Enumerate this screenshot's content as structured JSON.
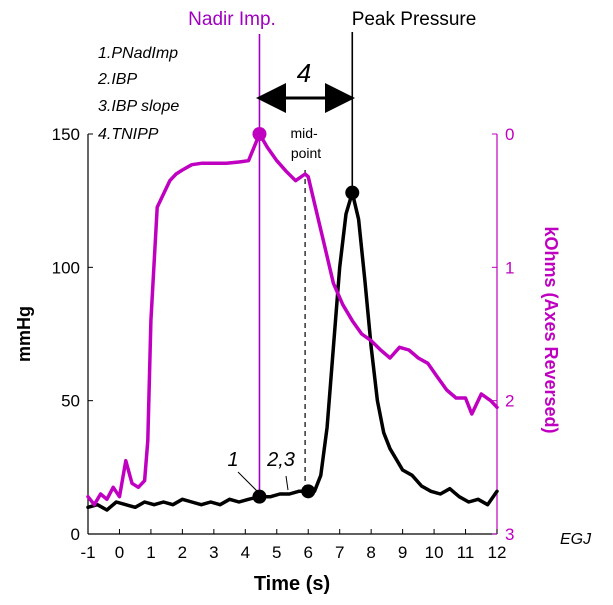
{
  "chart_data": {
    "type": "line",
    "x_axis": {
      "label": "Time (s)",
      "range": [
        -1,
        12
      ],
      "ticks": [
        -1,
        0,
        1,
        2,
        3,
        4,
        5,
        6,
        7,
        8,
        9,
        10,
        11,
        12
      ],
      "tick_labels": [
        "-1",
        "0",
        "1",
        "2",
        "3",
        "4",
        "5",
        "6",
        "7",
        "8",
        "9",
        "10",
        "11",
        "12"
      ]
    },
    "y_left": {
      "label": "mmHg",
      "range": [
        0,
        150
      ],
      "ticks": [
        0,
        50,
        100,
        150
      ],
      "tick_labels": [
        "0",
        "50",
        "100",
        "150"
      ]
    },
    "y_right": {
      "label": "kOhms (Axes Reversed)",
      "range": [
        0,
        3
      ],
      "reversed": true,
      "ticks": [
        0,
        1,
        2,
        3
      ],
      "tick_labels": [
        "0",
        "1",
        "2",
        "3"
      ],
      "color": "#c000c0"
    },
    "series": [
      {
        "key": "pressure",
        "axis": "left",
        "color": "#000000",
        "x": [
          -1,
          -0.7,
          -0.4,
          -0.1,
          0.2,
          0.5,
          0.8,
          1.1,
          1.4,
          1.7,
          2,
          2.3,
          2.6,
          2.9,
          3.2,
          3.5,
          3.8,
          4.1,
          4.45,
          4.8,
          5.1,
          5.4,
          5.7,
          6,
          6.2,
          6.4,
          6.6,
          6.8,
          7,
          7.2,
          7.4,
          7.6,
          7.8,
          8,
          8.2,
          8.4,
          8.6,
          8.8,
          9,
          9.3,
          9.6,
          9.9,
          10.2,
          10.5,
          10.8,
          11.1,
          11.4,
          11.7,
          12
        ],
        "y": [
          10,
          11,
          9,
          12,
          11,
          10,
          12,
          11,
          12,
          11,
          13,
          12,
          11,
          12,
          11,
          13,
          12,
          13,
          14,
          14,
          15,
          15,
          16,
          16,
          16,
          22,
          40,
          70,
          100,
          120,
          128,
          118,
          95,
          70,
          50,
          38,
          32,
          28,
          24,
          22,
          18,
          16,
          15,
          17,
          14,
          12,
          13,
          11,
          16
        ]
      },
      {
        "key": "impedance",
        "axis": "right",
        "color": "#c000c0",
        "x": [
          -1,
          -0.8,
          -0.6,
          -0.4,
          -0.2,
          0,
          0.2,
          0.4,
          0.6,
          0.8,
          0.9,
          1,
          1.2,
          1.4,
          1.6,
          1.8,
          2,
          2.3,
          2.6,
          3,
          3.4,
          3.8,
          4.1,
          4.45,
          4.7,
          5,
          5.3,
          5.6,
          5.9,
          6,
          6.2,
          6.5,
          6.8,
          7.1,
          7.4,
          7.7,
          8,
          8.3,
          8.6,
          8.9,
          9.2,
          9.5,
          9.8,
          10.1,
          10.4,
          10.7,
          11,
          11.2,
          11.5,
          11.8,
          12
        ],
        "y": [
          2.72,
          2.78,
          2.7,
          2.74,
          2.65,
          2.72,
          2.45,
          2.62,
          2.65,
          2.6,
          2.3,
          1.4,
          0.55,
          0.45,
          0.35,
          0.3,
          0.27,
          0.23,
          0.22,
          0.22,
          0.22,
          0.21,
          0.2,
          0.0,
          0.1,
          0.2,
          0.28,
          0.35,
          0.3,
          0.32,
          0.52,
          0.82,
          1.12,
          1.28,
          1.4,
          1.5,
          1.55,
          1.62,
          1.68,
          1.6,
          1.62,
          1.68,
          1.72,
          1.82,
          1.92,
          1.98,
          1.98,
          2.1,
          1.95,
          2.0,
          2.05
        ]
      }
    ],
    "markers": [
      {
        "series": "pressure",
        "x": 4.45,
        "y": 14,
        "color": "#000000"
      },
      {
        "series": "pressure",
        "x": 6.0,
        "y": 16,
        "color": "#000000"
      },
      {
        "series": "pressure",
        "x": 7.4,
        "y": 128,
        "color": "#000000"
      },
      {
        "series": "impedance",
        "x": 4.45,
        "y": 0.0,
        "color": "#c000c0"
      }
    ],
    "vlines": [
      {
        "key": "nadir",
        "x": 4.45,
        "label": "Nadir Imp.",
        "color": "#a000c0",
        "style": "solid"
      },
      {
        "key": "peak",
        "x": 7.4,
        "label": "Peak Pressure",
        "color": "#000000",
        "style": "solid"
      },
      {
        "key": "midpoint",
        "x": 5.9,
        "label": "mid-\npoint",
        "color": "#000000",
        "style": "dashed"
      }
    ],
    "annotations": {
      "legend_lines": [
        "1.PNadImp",
        "2.IBP",
        "3.IBP slope",
        "4.TNIPP"
      ],
      "arrow_label": "4",
      "label_1": "1",
      "label_23": "2,3",
      "corner_label": "EGJ"
    }
  }
}
